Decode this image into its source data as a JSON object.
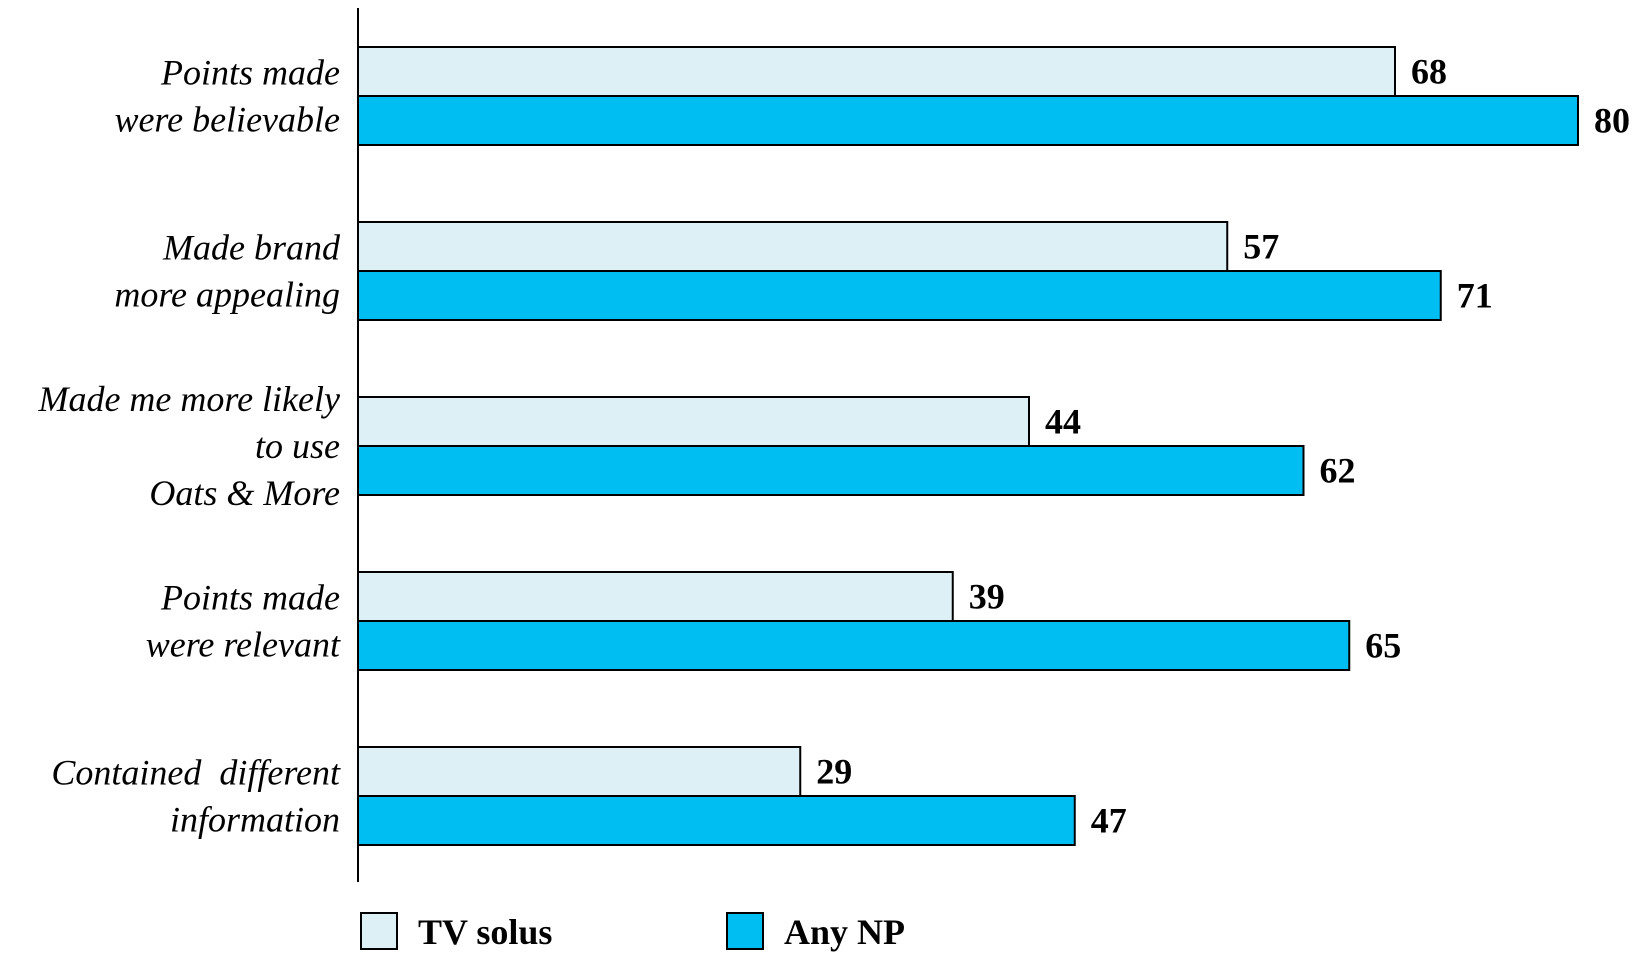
{
  "chart_data": {
    "type": "bar",
    "orientation": "horizontal",
    "categories": [
      [
        "Points made",
        "were believable"
      ],
      [
        "Made brand",
        "more appealing"
      ],
      [
        "Made me more likely",
        "to use",
        "Oats & More"
      ],
      [
        "Points made",
        "were relevant"
      ],
      [
        "Contained  different",
        "information"
      ]
    ],
    "series": [
      {
        "name": "TV solus",
        "values": [
          68,
          57,
          44,
          39,
          29
        ],
        "color": "#ddf0f6"
      },
      {
        "name": "Any NP",
        "values": [
          80,
          71,
          62,
          65,
          47
        ],
        "color": "#00bdf2"
      }
    ],
    "xlim": [
      0,
      80
    ],
    "legend_position": "bottom"
  }
}
